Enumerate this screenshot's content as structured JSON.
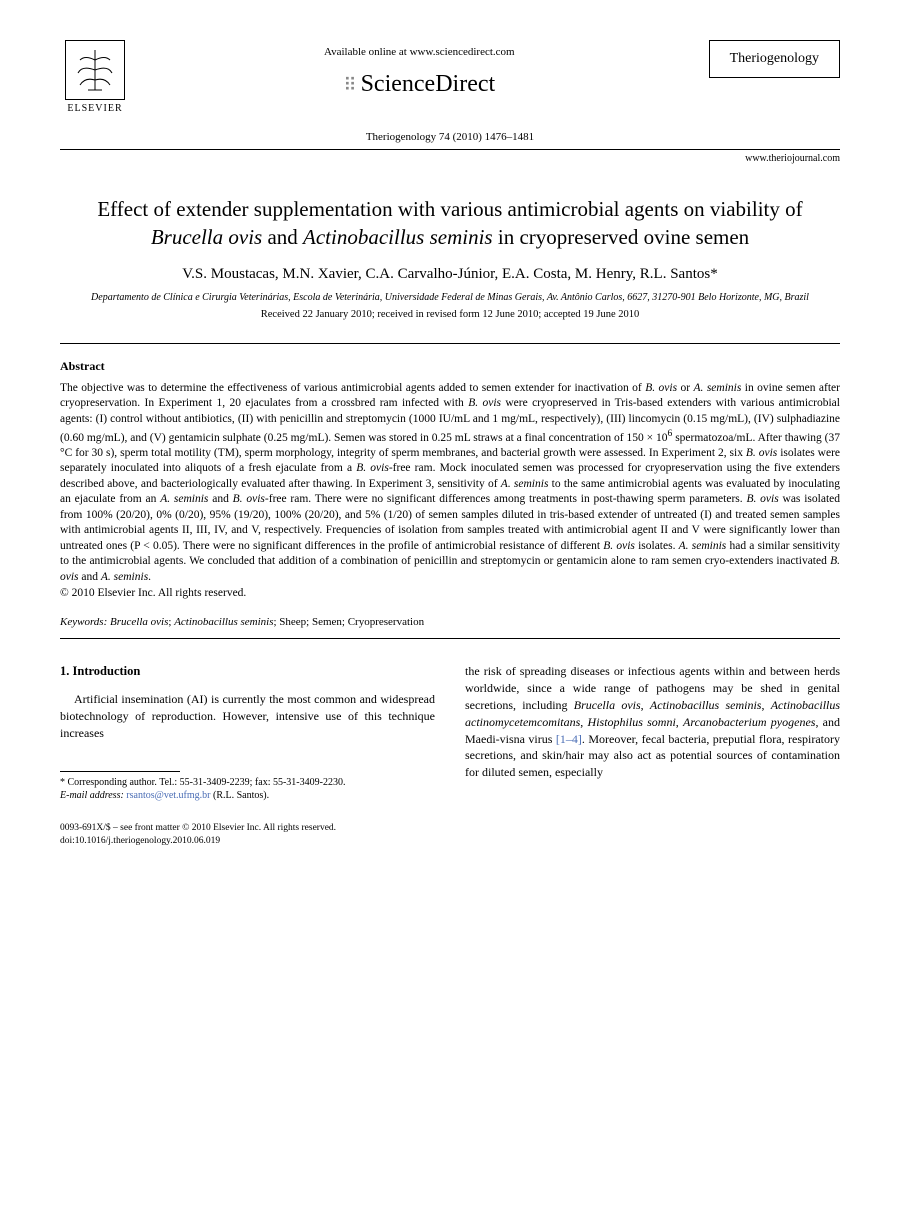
{
  "header": {
    "elsevier_label": "ELSEVIER",
    "available_text": "Available online at www.sciencedirect.com",
    "sciencedirect": "ScienceDirect",
    "journal_box": "Theriogenology",
    "citation": "Theriogenology 74 (2010) 1476–1481",
    "journal_url": "www.theriojournal.com"
  },
  "title_parts": {
    "p1": "Effect of extender supplementation with various antimicrobial agents on viability of ",
    "p2": "Brucella ovis",
    "p3": " and ",
    "p4": "Actinobacillus seminis",
    "p5": " in cryopreserved ovine semen"
  },
  "authors": "V.S. Moustacas, M.N. Xavier, C.A. Carvalho-Júnior, E.A. Costa, M. Henry, R.L. Santos*",
  "affiliation": "Departamento de Clínica e Cirurgia Veterinárias, Escola de Veterinária, Universidade Federal de Minas Gerais, Av. Antônio Carlos, 6627, 31270-901 Belo Horizonte, MG, Brazil",
  "dates": "Received 22 January 2010; received in revised form 12 June 2010; accepted 19 June 2010",
  "abstract": {
    "heading": "Abstract",
    "text_parts": [
      {
        "t": "The objective was to determine the effectiveness of various antimicrobial agents added to semen extender for inactivation of ",
        "i": false
      },
      {
        "t": "B. ovis",
        "i": true
      },
      {
        "t": " or ",
        "i": false
      },
      {
        "t": "A. seminis",
        "i": true
      },
      {
        "t": " in ovine semen after cryopreservation. In Experiment 1, 20 ejaculates from a crossbred ram infected with ",
        "i": false
      },
      {
        "t": "B. ovis",
        "i": true
      },
      {
        "t": " were cryopreserved in Tris-based extenders with various antimicrobial agents: (I) control without antibiotics, (II) with penicillin and streptomycin (1000 IU/mL and 1 mg/mL, respectively), (III) lincomycin (0.15 mg/mL), (IV) sulphadiazine (0.60 mg/mL), and (V) gentamicin sulphate (0.25 mg/mL). Semen was stored in 0.25 mL straws at a final concentration of 150 × 10",
        "i": false
      },
      {
        "t": "6",
        "i": false,
        "sup": true
      },
      {
        "t": " spermatozoa/mL. After thawing (37 °C for 30 s), sperm total motility (TM), sperm morphology, integrity of sperm membranes, and bacterial growth were assessed. In Experiment 2, six ",
        "i": false
      },
      {
        "t": "B. ovis",
        "i": true
      },
      {
        "t": " isolates were separately inoculated into aliquots of a fresh ejaculate from a ",
        "i": false
      },
      {
        "t": "B. ovis",
        "i": true
      },
      {
        "t": "-free ram. Mock inoculated semen was processed for cryopreservation using the five extenders described above, and bacteriologically evaluated after thawing. In Experiment 3, sensitivity of ",
        "i": false
      },
      {
        "t": "A. seminis",
        "i": true
      },
      {
        "t": " to the same antimicrobial agents was evaluated by inoculating an ejaculate from an ",
        "i": false
      },
      {
        "t": "A. seminis",
        "i": true
      },
      {
        "t": " and ",
        "i": false
      },
      {
        "t": "B. ovis",
        "i": true
      },
      {
        "t": "-free ram. There were no significant differences among treatments in post-thawing sperm parameters. ",
        "i": false
      },
      {
        "t": "B. ovis",
        "i": true
      },
      {
        "t": " was isolated from 100% (20/20), 0% (0/20), 95% (19/20), 100% (20/20), and 5% (1/20) of semen samples diluted in tris-based extender of untreated (I) and treated semen samples with antimicrobial agents II, III, IV, and V, respectively. Frequencies of isolation from samples treated with antimicrobial agent II and V were significantly lower than untreated ones (P < 0.05). There were no significant differences in the profile of antimicrobial resistance of different ",
        "i": false
      },
      {
        "t": "B. ovis",
        "i": true
      },
      {
        "t": " isolates. ",
        "i": false
      },
      {
        "t": "A. seminis",
        "i": true
      },
      {
        "t": " had a similar sensitivity to the antimicrobial agents. We concluded that addition of a combination of penicillin and streptomycin or gentamicin alone to ram semen cryo-extenders inactivated ",
        "i": false
      },
      {
        "t": "B. ovis",
        "i": true
      },
      {
        "t": " and ",
        "i": false
      },
      {
        "t": "A. seminis",
        "i": true
      },
      {
        "t": ".",
        "i": false
      }
    ],
    "copyright": "© 2010 Elsevier Inc. All rights reserved."
  },
  "keywords": {
    "label": "Keywords:",
    "items_parts": [
      {
        "t": "Brucella ovis",
        "i": true
      },
      {
        "t": "; ",
        "i": false
      },
      {
        "t": "Actinobacillus seminis",
        "i": true
      },
      {
        "t": "; Sheep; Semen; Cryopreservation",
        "i": false
      }
    ]
  },
  "intro": {
    "heading": "1. Introduction",
    "left": "Artificial insemination (AI) is currently the most common and widespread biotechnology of reproduction. However, intensive use of this technique increases",
    "right_parts": [
      {
        "t": "the risk of spreading diseases or infectious agents within and between herds worldwide, since a wide range of pathogens may be shed in genital secretions, including ",
        "i": false
      },
      {
        "t": "Brucella ovis",
        "i": true
      },
      {
        "t": ", ",
        "i": false
      },
      {
        "t": "Actinobacillus seminis",
        "i": true
      },
      {
        "t": ", ",
        "i": false
      },
      {
        "t": "Actinobacillus actinomycetemcomitans",
        "i": true
      },
      {
        "t": ", ",
        "i": false
      },
      {
        "t": "Histophilus somni",
        "i": true
      },
      {
        "t": ", ",
        "i": false
      },
      {
        "t": "Arcanobacterium pyogenes",
        "i": true
      },
      {
        "t": ", and Maedi-visna virus ",
        "i": false
      },
      {
        "t": "[1–4]",
        "i": false,
        "ref": true
      },
      {
        "t": ". Moreover, fecal bacteria, preputial flora, respiratory secretions, and skin/hair may also act as potential sources of contamination for diluted semen, especially",
        "i": false
      }
    ]
  },
  "footnote": {
    "corr": "* Corresponding author. Tel.: 55-31-3409-2239; fax: 55-31-3409-2230.",
    "email_label": "E-mail address:",
    "email": "rsantos@vet.ufmg.br",
    "email_suffix": "(R.L. Santos)."
  },
  "footer": {
    "line1": "0093-691X/$ – see front matter © 2010 Elsevier Inc. All rights reserved.",
    "line2": "doi:10.1016/j.theriogenology.2010.06.019"
  },
  "colors": {
    "text": "#000000",
    "background": "#ffffff",
    "link": "#4a6db5"
  }
}
